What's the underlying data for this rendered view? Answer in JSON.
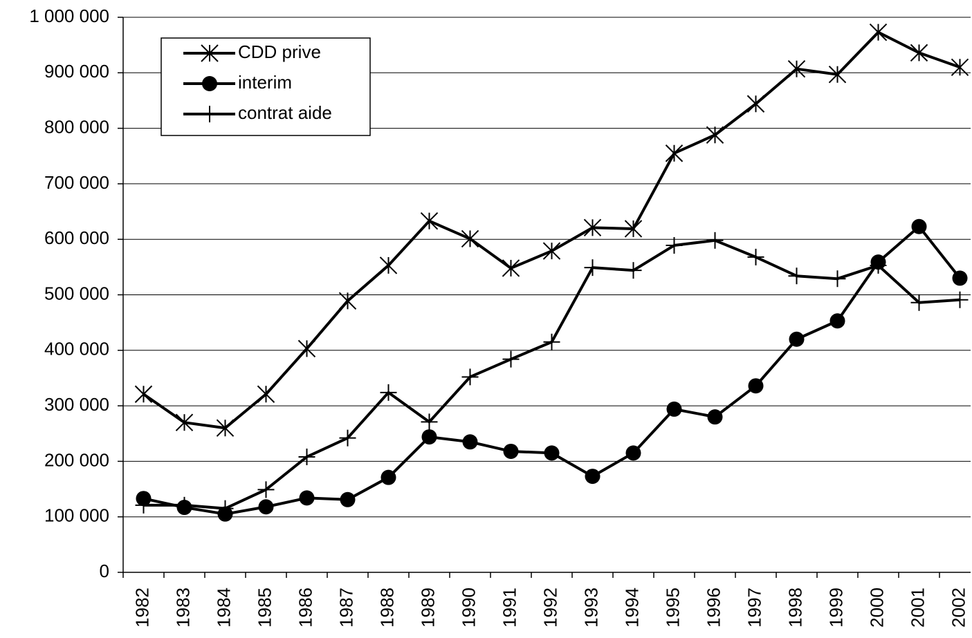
{
  "chart_data": {
    "type": "line",
    "categories": [
      "1982",
      "1983",
      "1984",
      "1985",
      "1986",
      "1987",
      "1988",
      "1989",
      "1990",
      "1991",
      "1992",
      "1993",
      "1994",
      "1995",
      "1996",
      "1997",
      "1998",
      "1999",
      "2000",
      "2001",
      "2002"
    ],
    "series": [
      {
        "name": "CDD prive",
        "color": "#000000",
        "marker": "star",
        "values": [
          321000,
          270000,
          260000,
          321000,
          403000,
          489000,
          553000,
          633000,
          601000,
          548000,
          579000,
          621000,
          619000,
          755000,
          788000,
          844000,
          907000,
          897000,
          973000,
          936000,
          910000
        ]
      },
      {
        "name": "interim",
        "color": "#000000",
        "marker": "circle",
        "values": [
          133000,
          117000,
          105000,
          118000,
          134000,
          131000,
          171000,
          244000,
          235000,
          218000,
          215000,
          173000,
          215000,
          294000,
          280000,
          336000,
          420000,
          453000,
          559000,
          623000,
          530000
        ]
      },
      {
        "name": "contrat aide",
        "color": "#000000",
        "marker": "plus",
        "values": [
          121000,
          121000,
          115000,
          149000,
          208000,
          242000,
          324000,
          271000,
          352000,
          384000,
          415000,
          549000,
          544000,
          589000,
          598000,
          568000,
          534000,
          529000,
          553000,
          486000,
          491000
        ]
      }
    ],
    "ylim": [
      0,
      1000000
    ],
    "yticks": [
      0,
      {
        "value": 100000,
        "label": "100 000"
      },
      {
        "value": 200000,
        "label": "200 000"
      },
      {
        "value": 300000,
        "label": "300 000"
      },
      {
        "value": 400000,
        "label": "400 000"
      },
      {
        "value": 500000,
        "label": "500 000"
      },
      {
        "value": 600000,
        "label": "600 000"
      },
      {
        "value": 700000,
        "label": "700 000"
      },
      {
        "value": 800000,
        "label": "800 000"
      },
      {
        "value": 900000,
        "label": "900 000"
      },
      {
        "value": 1000000,
        "label": "1 000 000"
      }
    ],
    "grid": true,
    "legend": "top-left"
  }
}
